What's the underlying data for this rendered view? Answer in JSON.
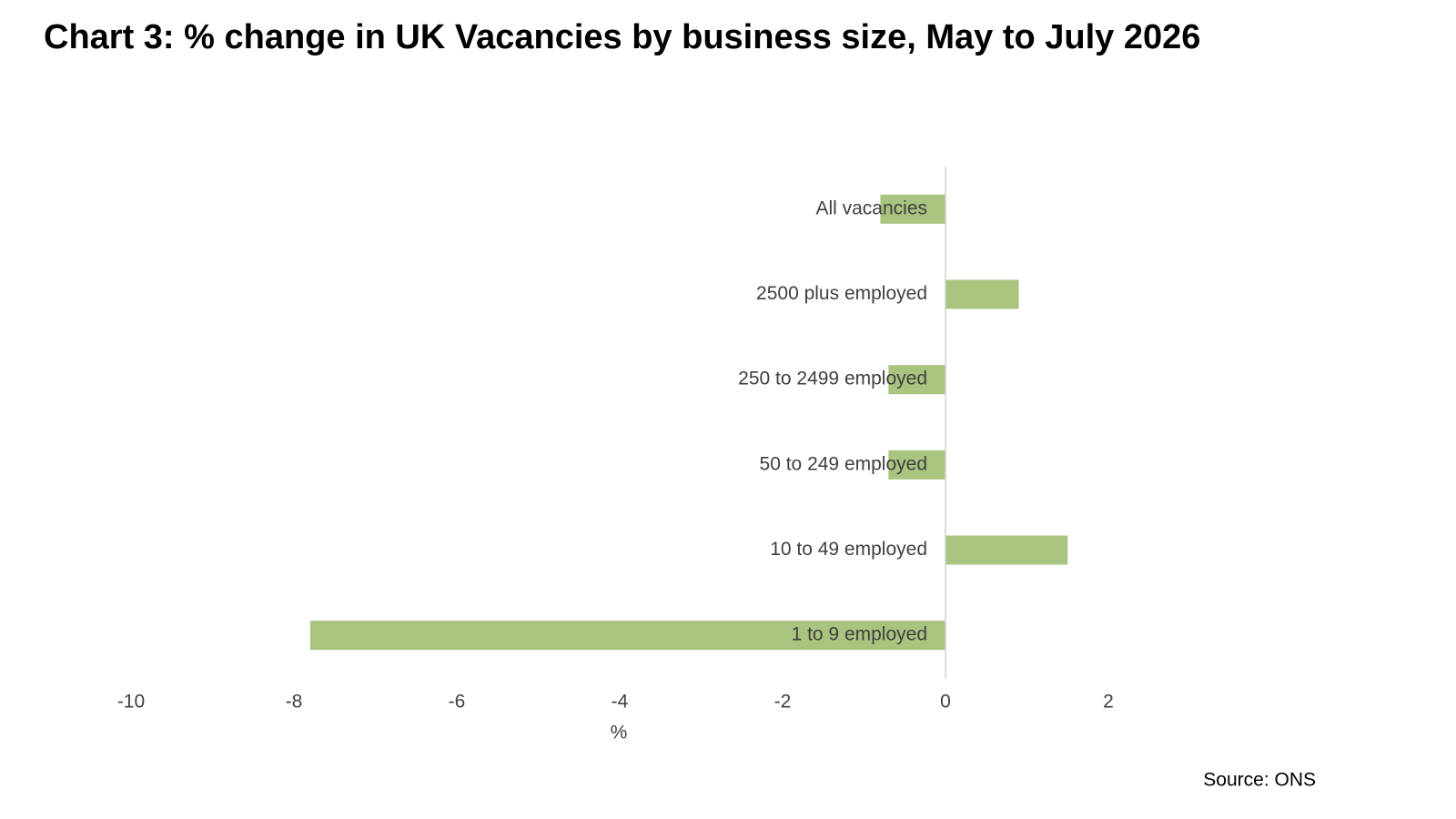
{
  "chart_data": {
    "type": "bar",
    "orientation": "horizontal",
    "title": "Chart 3: % change in UK Vacancies by business size, May to July 2026",
    "categories": [
      "All vacancies",
      "2500 plus employed",
      "250 to 2499 employed",
      "50 to 249 employed",
      "10 to 49 employed",
      "1 to 9 employed"
    ],
    "values": [
      -0.8,
      0.9,
      -0.7,
      -0.7,
      1.5,
      -7.8
    ],
    "color": "#a9c47f",
    "xlabel": "%",
    "xlim": [
      -10,
      2
    ],
    "xticks": [
      -10,
      -8,
      -6,
      -4,
      -2,
      0,
      2
    ],
    "grid": false,
    "source": "Source: ONS"
  }
}
